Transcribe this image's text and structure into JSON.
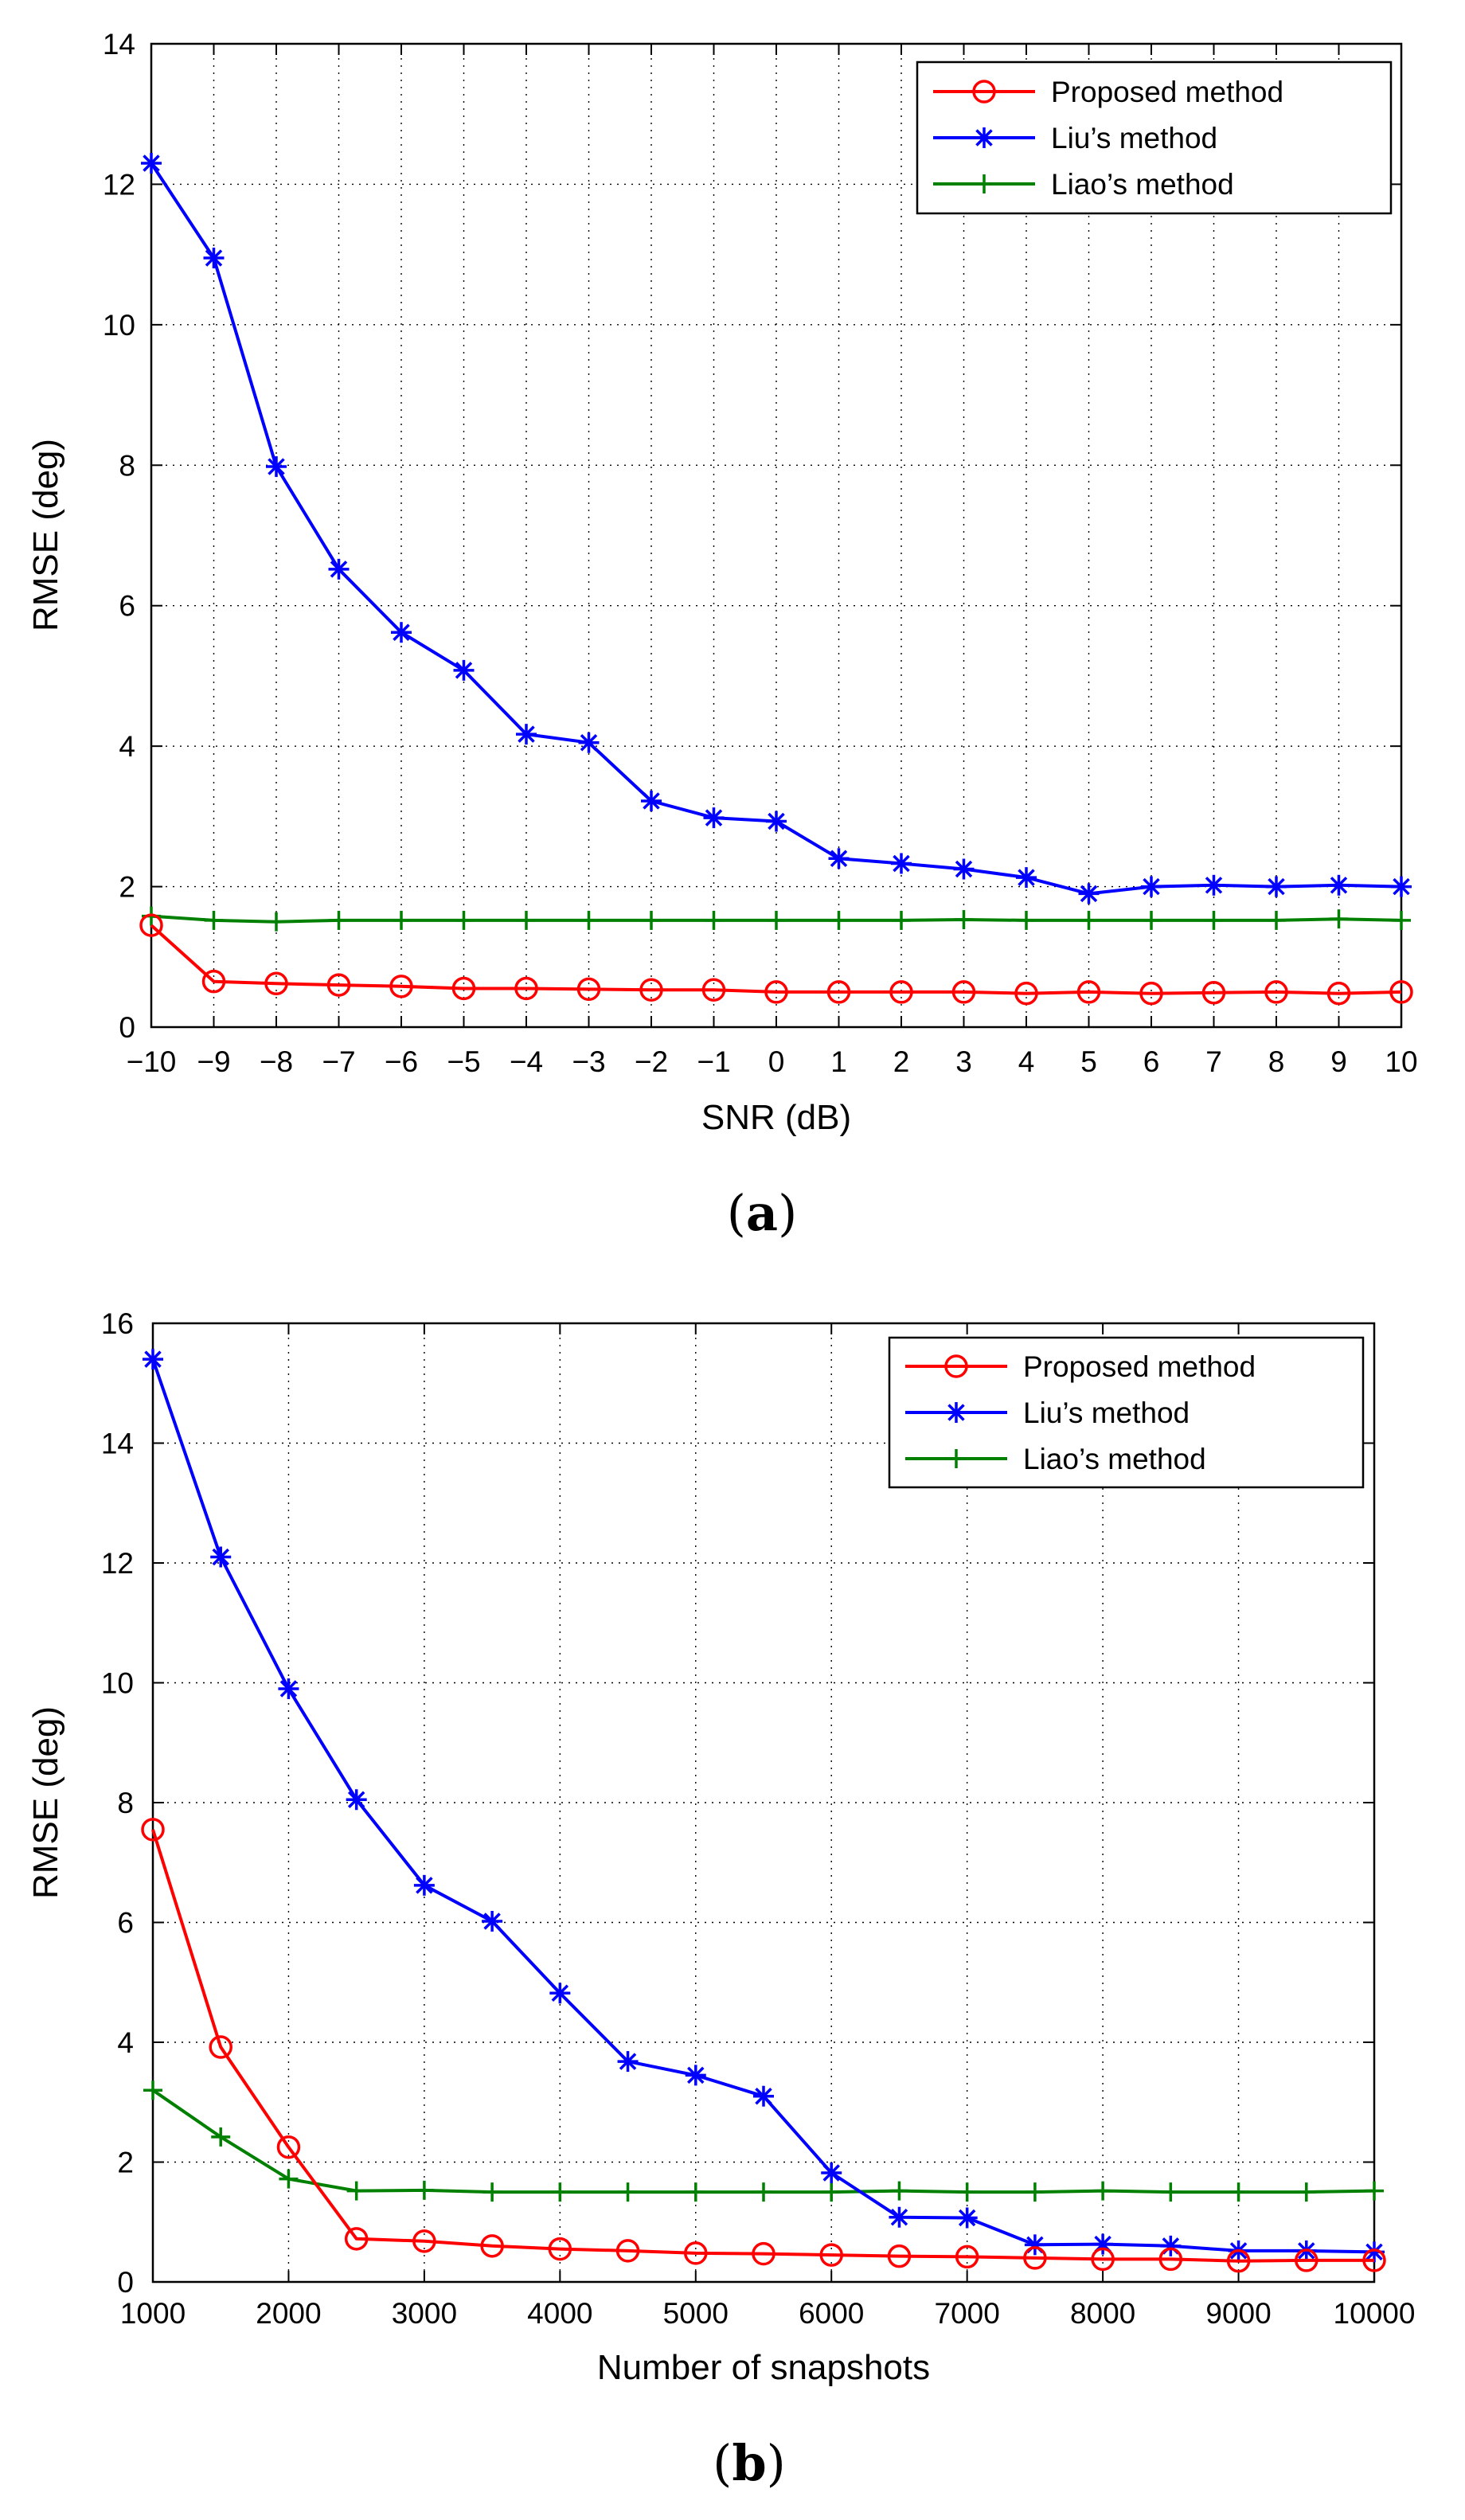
{
  "chart_data": [
    {
      "type": "line",
      "panel": "a",
      "caption": "(a)",
      "caption_letter": "a",
      "xlabel": "SNR (dB)",
      "ylabel": "RMSE (deg)",
      "xlim": [
        -10,
        10
      ],
      "ylim": [
        0,
        14
      ],
      "xticks": [
        -10,
        -9,
        -8,
        -7,
        -6,
        -5,
        -4,
        -3,
        -2,
        -1,
        0,
        1,
        2,
        3,
        4,
        5,
        6,
        7,
        8,
        9,
        10
      ],
      "xtick_labels": [
        "−10",
        "−9",
        "−8",
        "−7",
        "−6",
        "−5",
        "−4",
        "−3",
        "−2",
        "−1",
        "0",
        "1",
        "2",
        "3",
        "4",
        "5",
        "6",
        "7",
        "8",
        "9",
        "10"
      ],
      "yticks": [
        0,
        2,
        4,
        6,
        8,
        10,
        12,
        14
      ],
      "grid": true,
      "legend_position": "top-right",
      "x": [
        -10,
        -9,
        -8,
        -7,
        -6,
        -5,
        -4,
        -3,
        -2,
        -1,
        0,
        1,
        2,
        3,
        4,
        5,
        6,
        7,
        8,
        9,
        10
      ],
      "series": [
        {
          "name": "Proposed method",
          "color": "#ff0000",
          "marker": "circle",
          "values": [
            1.45,
            0.65,
            0.62,
            0.6,
            0.58,
            0.55,
            0.55,
            0.54,
            0.53,
            0.53,
            0.5,
            0.5,
            0.5,
            0.5,
            0.48,
            0.5,
            0.48,
            0.49,
            0.5,
            0.48,
            0.5
          ]
        },
        {
          "name": "Liu’s method",
          "color": "#0000ff",
          "marker": "star",
          "values": [
            12.3,
            10.95,
            7.98,
            6.52,
            5.62,
            5.08,
            4.17,
            4.05,
            3.22,
            2.98,
            2.93,
            2.4,
            2.33,
            2.25,
            2.13,
            1.9,
            2.0,
            2.02,
            2.0,
            2.02,
            2.0
          ]
        },
        {
          "name": "Liao’s method",
          "color": "#008000",
          "marker": "plus",
          "values": [
            1.58,
            1.52,
            1.5,
            1.52,
            1.52,
            1.52,
            1.52,
            1.52,
            1.52,
            1.52,
            1.52,
            1.52,
            1.52,
            1.53,
            1.52,
            1.52,
            1.52,
            1.52,
            1.52,
            1.54,
            1.52
          ]
        }
      ]
    },
    {
      "type": "line",
      "panel": "b",
      "caption": "(b)",
      "caption_letter": "b",
      "xlabel": "Number of snapshots",
      "ylabel": "RMSE (deg)",
      "xlim": [
        1000,
        10000
      ],
      "ylim": [
        0,
        16
      ],
      "xticks": [
        1000,
        2000,
        3000,
        4000,
        5000,
        6000,
        7000,
        8000,
        9000,
        10000
      ],
      "xtick_labels": [
        "1000",
        "2000",
        "3000",
        "4000",
        "5000",
        "6000",
        "7000",
        "8000",
        "9000",
        "10000"
      ],
      "yticks": [
        0,
        2,
        4,
        6,
        8,
        10,
        12,
        14,
        16
      ],
      "grid": true,
      "legend_position": "top-right",
      "x": [
        1000,
        1500,
        2000,
        2500,
        3000,
        3500,
        4000,
        4500,
        5000,
        5500,
        6000,
        6500,
        7000,
        7500,
        8000,
        8500,
        9000,
        9500,
        10000
      ],
      "series": [
        {
          "name": "Proposed method",
          "color": "#ff0000",
          "marker": "circle",
          "values": [
            7.55,
            3.92,
            2.25,
            0.72,
            0.68,
            0.6,
            0.55,
            0.52,
            0.48,
            0.47,
            0.45,
            0.43,
            0.42,
            0.4,
            0.38,
            0.38,
            0.35,
            0.36,
            0.36
          ]
        },
        {
          "name": "Liu’s method",
          "color": "#0000ff",
          "marker": "star",
          "values": [
            15.4,
            12.1,
            9.9,
            8.05,
            6.62,
            6.02,
            4.82,
            3.68,
            3.45,
            3.1,
            1.82,
            1.08,
            1.07,
            0.62,
            0.63,
            0.6,
            0.52,
            0.52,
            0.5
          ]
        },
        {
          "name": "Liao’s method",
          "color": "#008000",
          "marker": "plus",
          "values": [
            3.2,
            2.42,
            1.72,
            1.52,
            1.53,
            1.5,
            1.5,
            1.5,
            1.5,
            1.5,
            1.5,
            1.52,
            1.5,
            1.5,
            1.52,
            1.5,
            1.5,
            1.5,
            1.52
          ]
        }
      ]
    }
  ]
}
